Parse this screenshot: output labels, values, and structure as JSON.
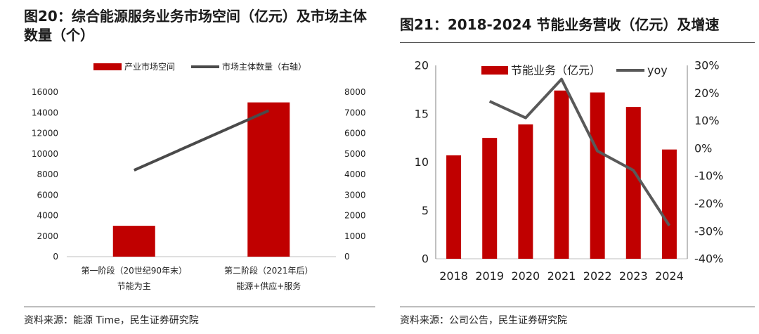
{
  "figures": [
    {
      "title": "图20：综合能源服务业务市场空间（亿元）及市场主体数量（个）",
      "source": "资料来源：能源 Time，民生证券研究院"
    },
    {
      "title": "图21：2018-2024 节能业务营收（亿元）及增速",
      "source": "资料来源：公司公告，民生证券研究院"
    }
  ],
  "chart_data": [
    {
      "type": "bar",
      "title": "图20：综合能源服务业务市场空间（亿元）及市场主体数量（个）",
      "categories": [
        [
          "第一阶段（20世纪90年末）",
          "节能为主"
        ],
        [
          "第二阶段（2021年后）",
          "能源+供应+服务"
        ]
      ],
      "series": [
        {
          "name": "产业市场空间",
          "kind": "bar",
          "axis": "left",
          "values": [
            3000,
            15000
          ],
          "color": "#C00000"
        },
        {
          "name": "市场主体数量（右轴）",
          "kind": "line",
          "axis": "right",
          "values": [
            4200,
            7100
          ],
          "color": "#4a4a4a"
        }
      ],
      "ylim": [
        0,
        16000
      ],
      "yticks": [
        "0",
        "2000",
        "4000",
        "6000",
        "8000",
        "10000",
        "12000",
        "14000",
        "16000"
      ],
      "y2lim": [
        0,
        8000
      ],
      "y2ticks": [
        "0",
        "1000",
        "2000",
        "3000",
        "4000",
        "5000",
        "6000",
        "7000",
        "8000"
      ],
      "legend": "top",
      "grid": false
    },
    {
      "type": "bar",
      "title": "图21：2018-2024 节能业务营收（亿元）及增速",
      "categories": [
        "2018",
        "2019",
        "2020",
        "2021",
        "2022",
        "2023",
        "2024"
      ],
      "series": [
        {
          "name": "节能业务（亿元）",
          "kind": "bar",
          "axis": "left",
          "values": [
            10.7,
            12.5,
            13.9,
            17.4,
            17.2,
            15.7,
            11.3
          ],
          "color": "#C00000"
        },
        {
          "name": "yoy",
          "kind": "line",
          "axis": "right",
          "values": [
            null,
            17,
            11,
            25,
            -1,
            -8,
            -28
          ],
          "color": "#595959"
        }
      ],
      "ylim": [
        0,
        20
      ],
      "yticks": [
        "0",
        "5",
        "10",
        "15",
        "20"
      ],
      "y2lim": [
        -40,
        30
      ],
      "y2ticks": [
        "-40%",
        "-30%",
        "-20%",
        "-10%",
        "0%",
        "10%",
        "20%",
        "30%"
      ],
      "legend": "top",
      "grid": false
    }
  ]
}
